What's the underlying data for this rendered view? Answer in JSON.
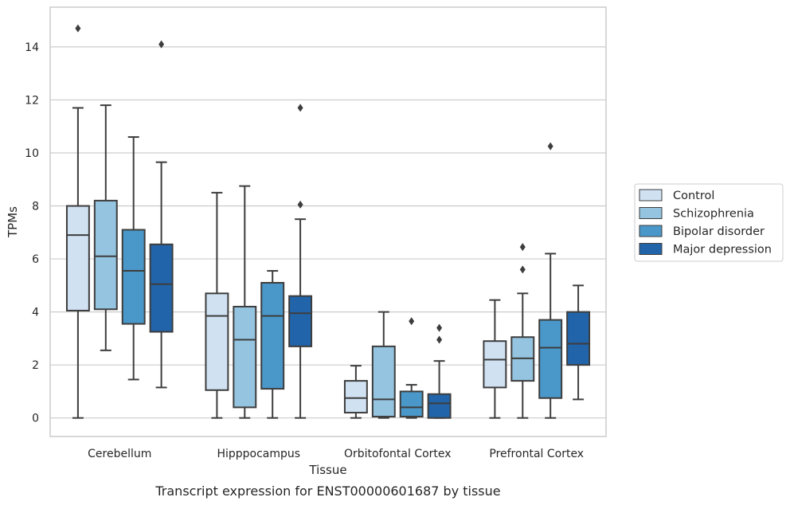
{
  "chart_data": {
    "type": "boxplot",
    "xlabel": "Tissue",
    "ylabel": "TPMs",
    "caption": "Transcript expression for ENST00000601687 by tissue",
    "ylim": [
      -0.7,
      15.5
    ],
    "yticks": [
      0,
      2,
      4,
      6,
      8,
      10,
      12,
      14
    ],
    "grid": "horizontal",
    "legend_position": "right",
    "categories": [
      "Cerebellum",
      "Hipppocampus",
      "Orbitofontal Cortex",
      "Prefrontal Cortex"
    ],
    "series": [
      {
        "name": "Control",
        "color": "#d0e1f2",
        "boxes": [
          {
            "whislo": 0,
            "q1": 4.05,
            "med": 6.9,
            "q3": 8.0,
            "whishi": 11.7,
            "fliers": [
              14.7
            ]
          },
          {
            "whislo": 0,
            "q1": 1.05,
            "med": 3.85,
            "q3": 4.7,
            "whishi": 8.5,
            "fliers": []
          },
          {
            "whislo": 0,
            "q1": 0.2,
            "med": 0.75,
            "q3": 1.4,
            "whishi": 1.97,
            "fliers": []
          },
          {
            "whislo": 0,
            "q1": 1.15,
            "med": 2.2,
            "q3": 2.9,
            "whishi": 4.45,
            "fliers": []
          }
        ]
      },
      {
        "name": "Schizophrenia",
        "color": "#94c4df",
        "boxes": [
          {
            "whislo": 2.55,
            "q1": 4.1,
            "med": 6.1,
            "q3": 8.2,
            "whishi": 11.8,
            "fliers": []
          },
          {
            "whislo": 0,
            "q1": 0.4,
            "med": 2.95,
            "q3": 4.2,
            "whishi": 8.75,
            "fliers": []
          },
          {
            "whislo": 0,
            "q1": 0.05,
            "med": 0.7,
            "q3": 2.7,
            "whishi": 4.0,
            "fliers": []
          },
          {
            "whislo": 0,
            "q1": 1.4,
            "med": 2.25,
            "q3": 3.05,
            "whishi": 4.7,
            "fliers": [
              5.6,
              6.45
            ]
          }
        ]
      },
      {
        "name": "Bipolar disorder",
        "color": "#4a98c9",
        "boxes": [
          {
            "whislo": 1.45,
            "q1": 3.55,
            "med": 5.55,
            "q3": 7.1,
            "whishi": 10.6,
            "fliers": []
          },
          {
            "whislo": 0,
            "q1": 1.1,
            "med": 3.85,
            "q3": 5.1,
            "whishi": 5.55,
            "fliers": []
          },
          {
            "whislo": 0,
            "q1": 0.05,
            "med": 0.4,
            "q3": 1.0,
            "whishi": 1.25,
            "fliers": [
              3.65
            ]
          },
          {
            "whislo": 0,
            "q1": 0.75,
            "med": 2.65,
            "q3": 3.7,
            "whishi": 6.2,
            "fliers": [
              10.25
            ]
          }
        ]
      },
      {
        "name": "Major depression",
        "color": "#2264a9",
        "boxes": [
          {
            "whislo": 1.15,
            "q1": 3.25,
            "med": 5.05,
            "q3": 6.55,
            "whishi": 9.65,
            "fliers": [
              14.1
            ]
          },
          {
            "whislo": 0,
            "q1": 2.7,
            "med": 3.95,
            "q3": 4.6,
            "whishi": 7.5,
            "fliers": [
              8.05,
              11.7
            ]
          },
          {
            "whislo": 0,
            "q1": 0,
            "med": 0.55,
            "q3": 0.9,
            "whishi": 2.15,
            "fliers": [
              2.95,
              3.4
            ]
          },
          {
            "whislo": 0.7,
            "q1": 2.0,
            "med": 2.8,
            "q3": 4.0,
            "whishi": 5.0,
            "fliers": []
          }
        ]
      }
    ]
  }
}
